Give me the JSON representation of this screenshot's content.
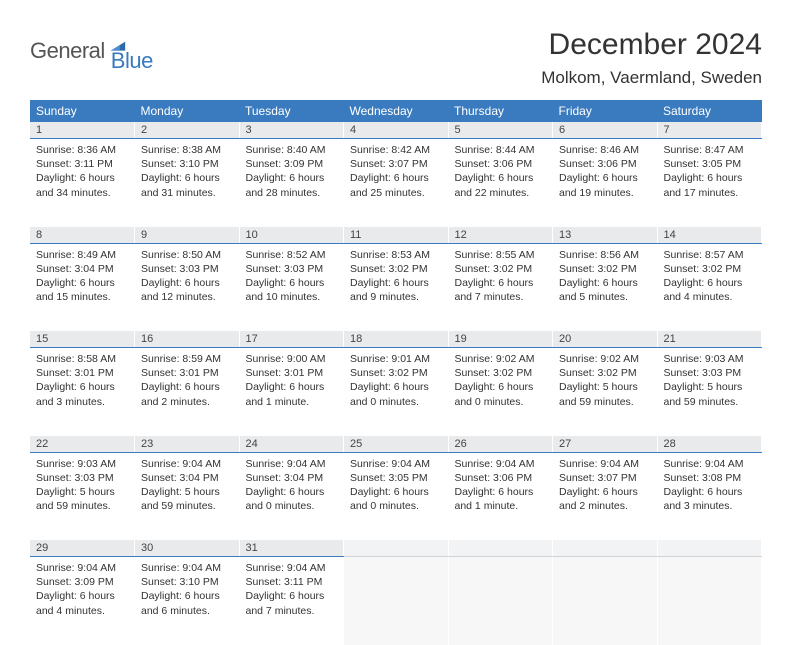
{
  "logo": {
    "text1": "General",
    "text2": "Blue"
  },
  "title": "December 2024",
  "location": "Molkom, Vaermland, Sweden",
  "colors": {
    "header_bg": "#3a7bbf",
    "header_text": "#ffffff",
    "daynum_bg": "#e8eaec",
    "daynum_border": "#3a7bbf",
    "empty_bg": "#f2f3f4",
    "body_text": "#333333",
    "page_bg": "#ffffff"
  },
  "day_headers": [
    "Sunday",
    "Monday",
    "Tuesday",
    "Wednesday",
    "Thursday",
    "Friday",
    "Saturday"
  ],
  "weeks": [
    [
      {
        "n": "1",
        "sr": "8:36 AM",
        "ss": "3:11 PM",
        "d1": "6 hours",
        "d2": "and 34 minutes."
      },
      {
        "n": "2",
        "sr": "8:38 AM",
        "ss": "3:10 PM",
        "d1": "6 hours",
        "d2": "and 31 minutes."
      },
      {
        "n": "3",
        "sr": "8:40 AM",
        "ss": "3:09 PM",
        "d1": "6 hours",
        "d2": "and 28 minutes."
      },
      {
        "n": "4",
        "sr": "8:42 AM",
        "ss": "3:07 PM",
        "d1": "6 hours",
        "d2": "and 25 minutes."
      },
      {
        "n": "5",
        "sr": "8:44 AM",
        "ss": "3:06 PM",
        "d1": "6 hours",
        "d2": "and 22 minutes."
      },
      {
        "n": "6",
        "sr": "8:46 AM",
        "ss": "3:06 PM",
        "d1": "6 hours",
        "d2": "and 19 minutes."
      },
      {
        "n": "7",
        "sr": "8:47 AM",
        "ss": "3:05 PM",
        "d1": "6 hours",
        "d2": "and 17 minutes."
      }
    ],
    [
      {
        "n": "8",
        "sr": "8:49 AM",
        "ss": "3:04 PM",
        "d1": "6 hours",
        "d2": "and 15 minutes."
      },
      {
        "n": "9",
        "sr": "8:50 AM",
        "ss": "3:03 PM",
        "d1": "6 hours",
        "d2": "and 12 minutes."
      },
      {
        "n": "10",
        "sr": "8:52 AM",
        "ss": "3:03 PM",
        "d1": "6 hours",
        "d2": "and 10 minutes."
      },
      {
        "n": "11",
        "sr": "8:53 AM",
        "ss": "3:02 PM",
        "d1": "6 hours",
        "d2": "and 9 minutes."
      },
      {
        "n": "12",
        "sr": "8:55 AM",
        "ss": "3:02 PM",
        "d1": "6 hours",
        "d2": "and 7 minutes."
      },
      {
        "n": "13",
        "sr": "8:56 AM",
        "ss": "3:02 PM",
        "d1": "6 hours",
        "d2": "and 5 minutes."
      },
      {
        "n": "14",
        "sr": "8:57 AM",
        "ss": "3:02 PM",
        "d1": "6 hours",
        "d2": "and 4 minutes."
      }
    ],
    [
      {
        "n": "15",
        "sr": "8:58 AM",
        "ss": "3:01 PM",
        "d1": "6 hours",
        "d2": "and 3 minutes."
      },
      {
        "n": "16",
        "sr": "8:59 AM",
        "ss": "3:01 PM",
        "d1": "6 hours",
        "d2": "and 2 minutes."
      },
      {
        "n": "17",
        "sr": "9:00 AM",
        "ss": "3:01 PM",
        "d1": "6 hours",
        "d2": "and 1 minute."
      },
      {
        "n": "18",
        "sr": "9:01 AM",
        "ss": "3:02 PM",
        "d1": "6 hours",
        "d2": "and 0 minutes."
      },
      {
        "n": "19",
        "sr": "9:02 AM",
        "ss": "3:02 PM",
        "d1": "6 hours",
        "d2": "and 0 minutes."
      },
      {
        "n": "20",
        "sr": "9:02 AM",
        "ss": "3:02 PM",
        "d1": "5 hours",
        "d2": "and 59 minutes."
      },
      {
        "n": "21",
        "sr": "9:03 AM",
        "ss": "3:03 PM",
        "d1": "5 hours",
        "d2": "and 59 minutes."
      }
    ],
    [
      {
        "n": "22",
        "sr": "9:03 AM",
        "ss": "3:03 PM",
        "d1": "5 hours",
        "d2": "and 59 minutes."
      },
      {
        "n": "23",
        "sr": "9:04 AM",
        "ss": "3:04 PM",
        "d1": "5 hours",
        "d2": "and 59 minutes."
      },
      {
        "n": "24",
        "sr": "9:04 AM",
        "ss": "3:04 PM",
        "d1": "6 hours",
        "d2": "and 0 minutes."
      },
      {
        "n": "25",
        "sr": "9:04 AM",
        "ss": "3:05 PM",
        "d1": "6 hours",
        "d2": "and 0 minutes."
      },
      {
        "n": "26",
        "sr": "9:04 AM",
        "ss": "3:06 PM",
        "d1": "6 hours",
        "d2": "and 1 minute."
      },
      {
        "n": "27",
        "sr": "9:04 AM",
        "ss": "3:07 PM",
        "d1": "6 hours",
        "d2": "and 2 minutes."
      },
      {
        "n": "28",
        "sr": "9:04 AM",
        "ss": "3:08 PM",
        "d1": "6 hours",
        "d2": "and 3 minutes."
      }
    ],
    [
      {
        "n": "29",
        "sr": "9:04 AM",
        "ss": "3:09 PM",
        "d1": "6 hours",
        "d2": "and 4 minutes."
      },
      {
        "n": "30",
        "sr": "9:04 AM",
        "ss": "3:10 PM",
        "d1": "6 hours",
        "d2": "and 6 minutes."
      },
      {
        "n": "31",
        "sr": "9:04 AM",
        "ss": "3:11 PM",
        "d1": "6 hours",
        "d2": "and 7 minutes."
      },
      null,
      null,
      null,
      null
    ]
  ],
  "labels": {
    "sunrise": "Sunrise:",
    "sunset": "Sunset:",
    "daylight": "Daylight:"
  }
}
